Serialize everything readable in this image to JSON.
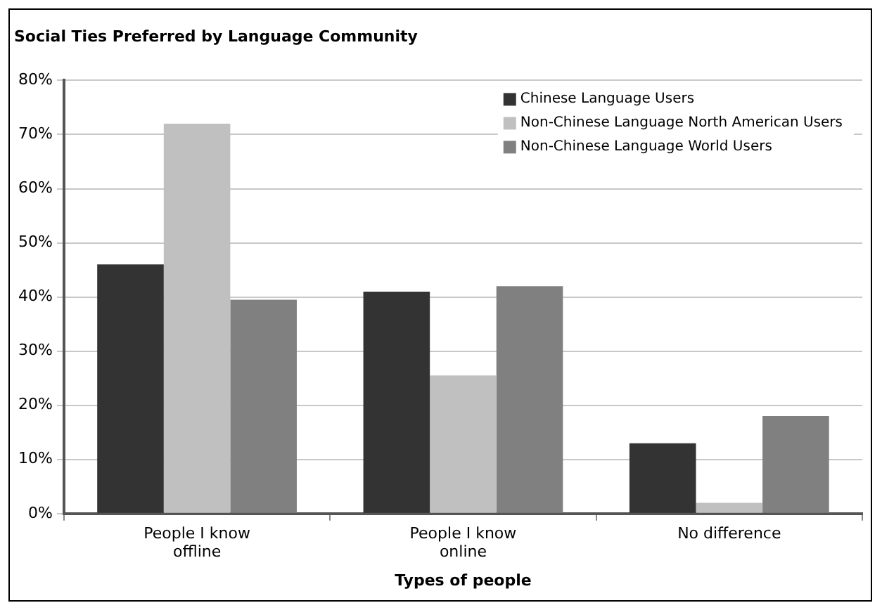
{
  "chart_data": {
    "type": "bar",
    "title": "Social Ties Preferred by Language Community",
    "xlabel": "Types of people",
    "categories": [
      "People I know offline",
      "People I know online",
      "No difference"
    ],
    "series": [
      {
        "name": "Chinese Language Users",
        "color": "#333333",
        "values": [
          46,
          41,
          13
        ]
      },
      {
        "name": "Non-Chinese Language North American Users",
        "color": "#c0c0c0",
        "values": [
          72,
          25.5,
          2
        ]
      },
      {
        "name": "Non-Chinese Language World Users",
        "color": "#808080",
        "values": [
          39.5,
          42,
          18
        ]
      }
    ],
    "ylim": [
      0,
      80
    ],
    "yticks": [
      {
        "value": 0,
        "label": "0%"
      },
      {
        "value": 10,
        "label": "10%"
      },
      {
        "value": 20,
        "label": "20%"
      },
      {
        "value": 30,
        "label": "30%"
      },
      {
        "value": 40,
        "label": "40%"
      },
      {
        "value": 50,
        "label": "50%"
      },
      {
        "value": 60,
        "label": "60%"
      },
      {
        "value": 70,
        "label": "70%"
      },
      {
        "value": 80,
        "label": "80%"
      }
    ],
    "grid": "y",
    "legend": "top right"
  }
}
